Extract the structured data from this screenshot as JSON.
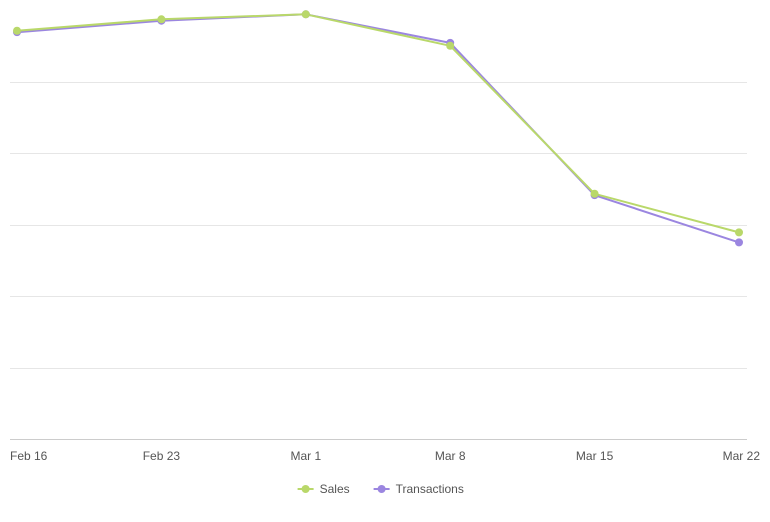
{
  "chart_data": {
    "type": "line",
    "categories": [
      "Feb 16",
      "Feb 23",
      "Mar 1",
      "Mar 8",
      "Mar 15",
      "Mar 22"
    ],
    "series": [
      {
        "name": "Sales",
        "color": "#b9d86a",
        "values": [
          285.5,
          293.5,
          297,
          275,
          171.5,
          144.5
        ]
      },
      {
        "name": "Transactions",
        "color": "#9b86e0",
        "values": [
          284.5,
          292.5,
          297,
          277,
          170.5,
          137.5
        ]
      }
    ],
    "ylim": [
      0,
      300
    ],
    "grid": true,
    "legend": "bottom-center",
    "gridline_color": "#e6e6e6",
    "axis_line_color": "#cccccc"
  }
}
